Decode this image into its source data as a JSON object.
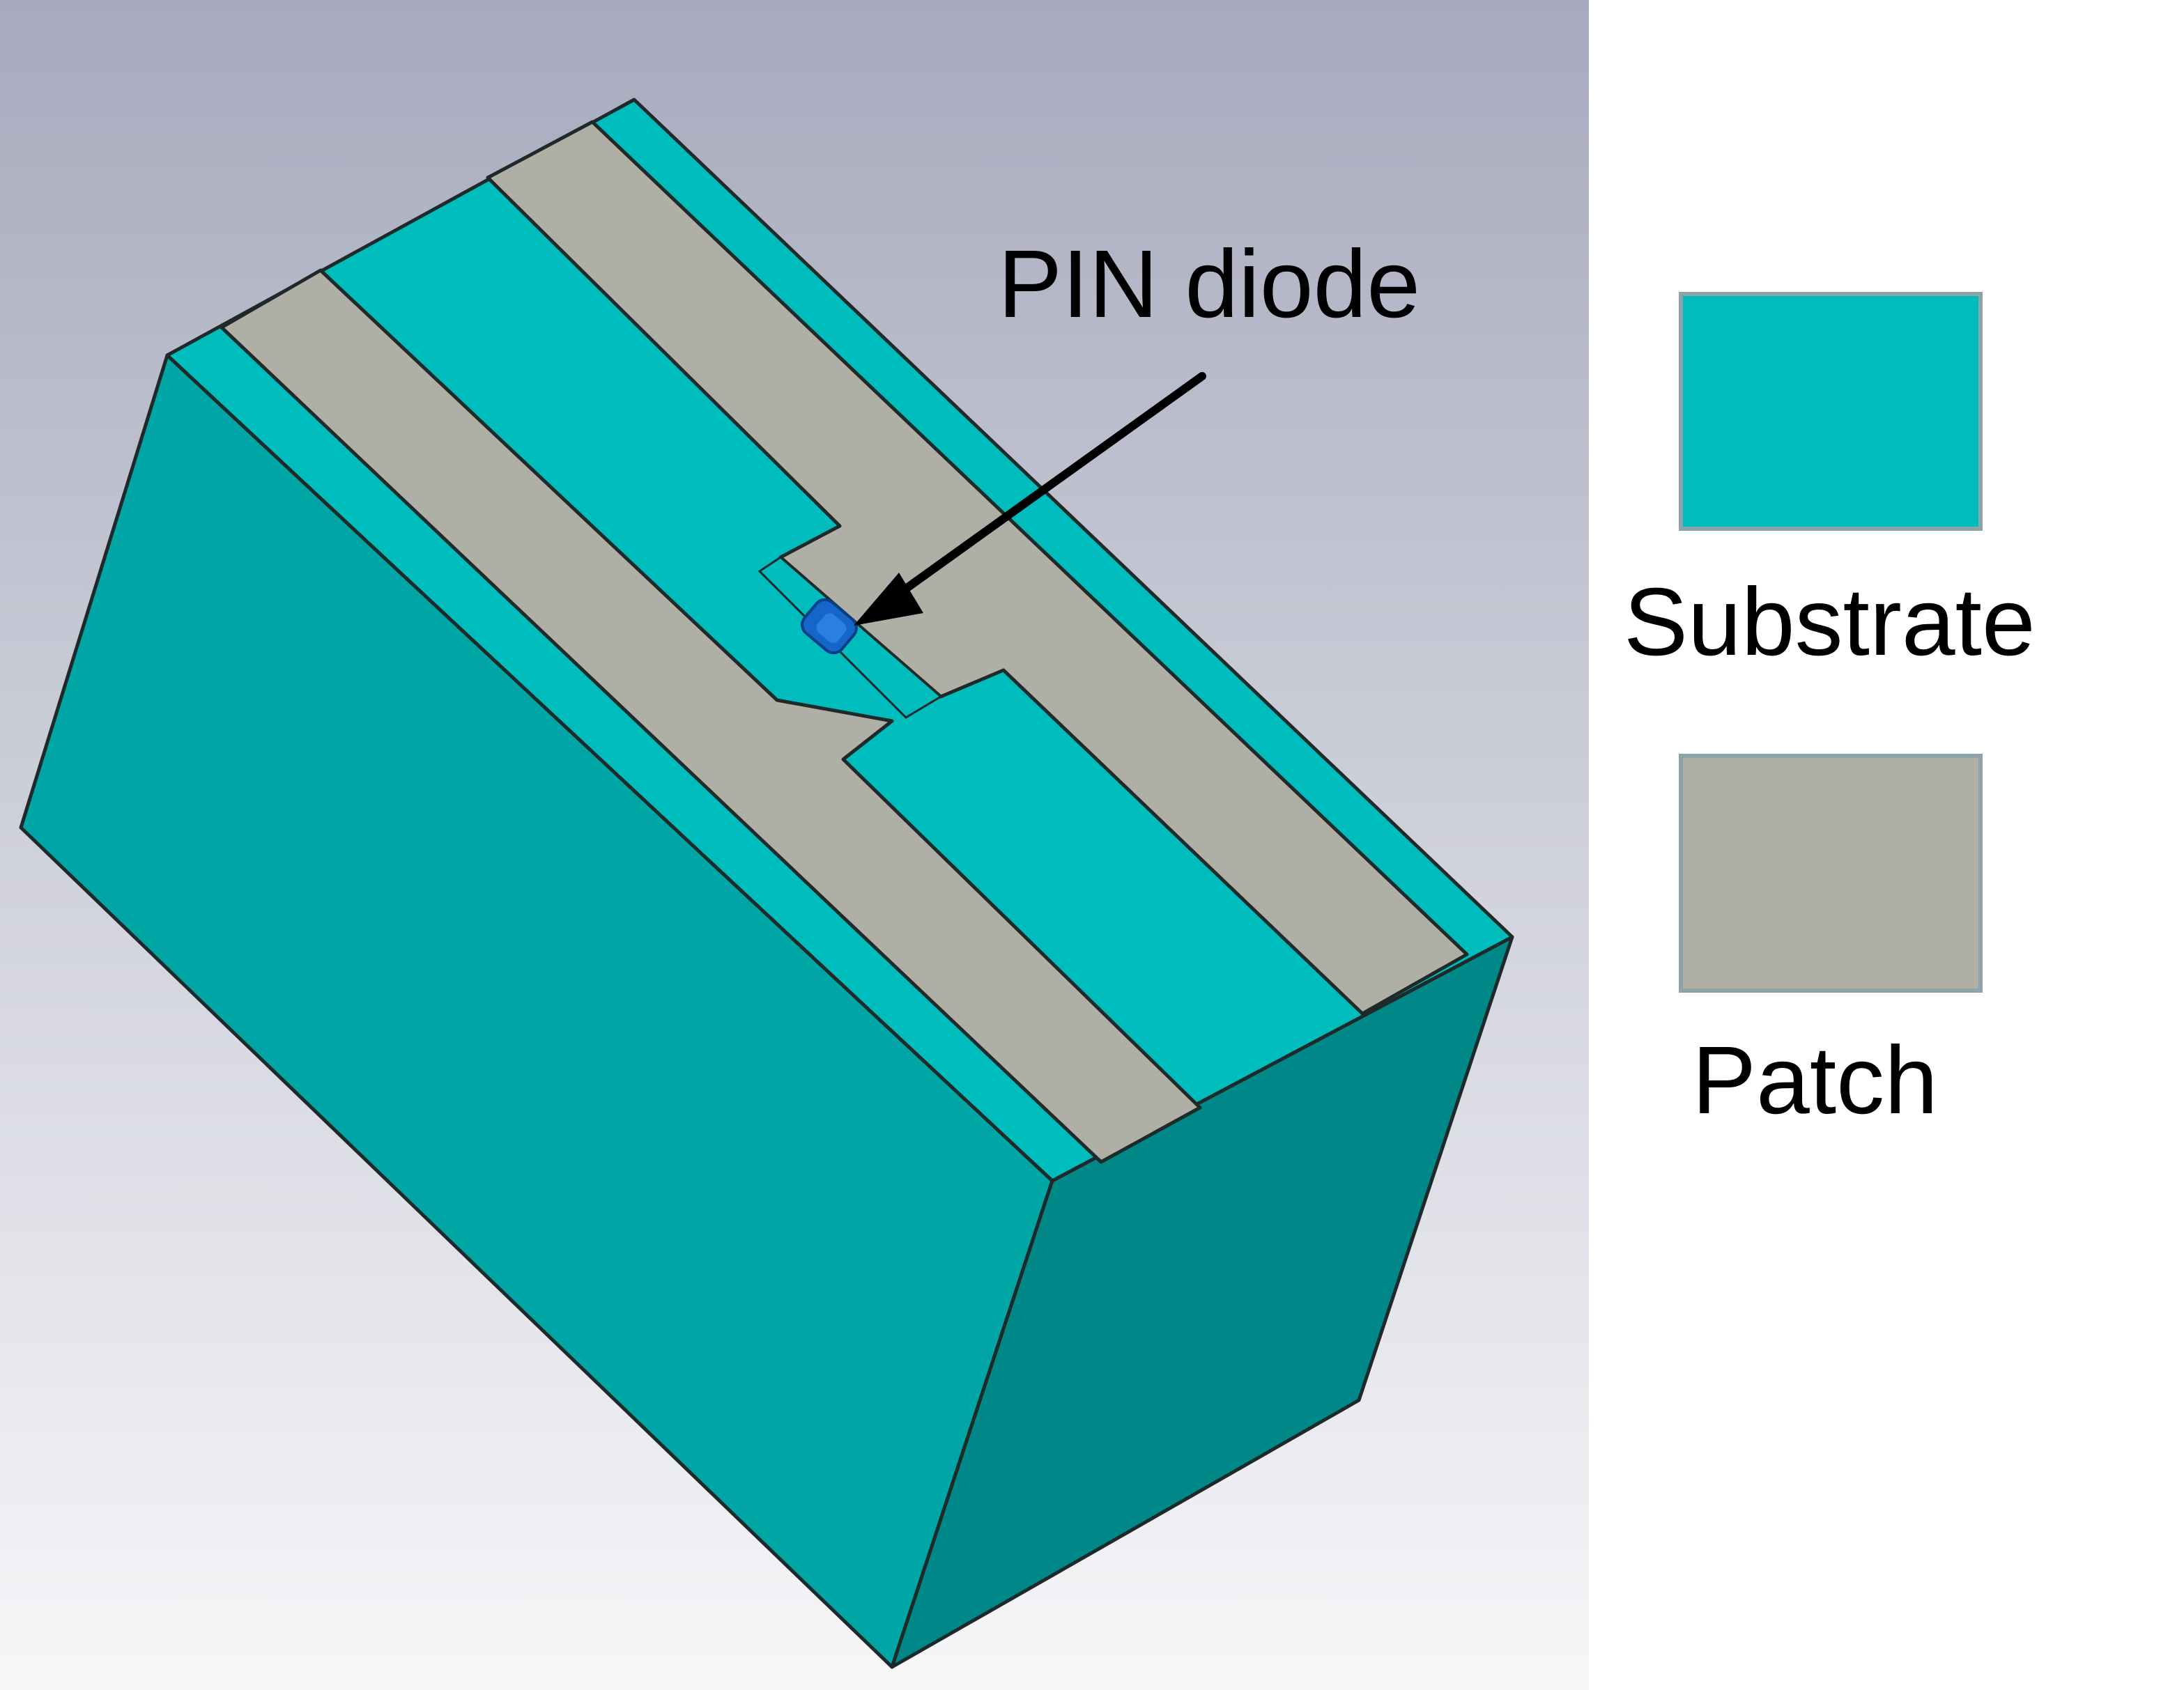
{
  "annotation": {
    "text": "PIN diode"
  },
  "legend": {
    "items": [
      {
        "label": "Substrate",
        "color": "#00BDBD"
      },
      {
        "label": "Patch",
        "color": "#AFAFA5"
      }
    ]
  },
  "colors": {
    "background_top": "#A7AABD",
    "background_bottom": "#F7F7F9",
    "substrate_top": "#00BDBD",
    "substrate_side_left": "#00A5A5",
    "substrate_side_right": "#008888",
    "patch": "#AFAFA5",
    "diode": "#1466C8",
    "edge": "#1E2A2A",
    "legend_border": "#8EA3A8"
  }
}
